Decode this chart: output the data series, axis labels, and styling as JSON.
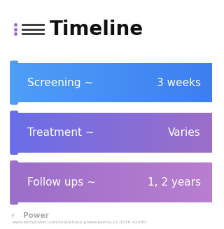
{
  "title": "Timeline",
  "background_color": "#ffffff",
  "rows": [
    {
      "label": "Screening ~",
      "value": "3 weeks",
      "color_left": "#4d9ef7",
      "color_right": "#3d7ef0"
    },
    {
      "label": "Treatment ~",
      "value": "Varies",
      "color_left": "#6a6de8",
      "color_right": "#9b6ec8"
    },
    {
      "label": "Follow ups ~",
      "value": "1, 2 years",
      "color_left": "#9b6ec8",
      "color_right": "#b87ecf"
    }
  ],
  "title_fontsize": 20,
  "row_fontsize": 11,
  "icon_color": "#a066cc",
  "footer_text": "Power",
  "footer_url": "www.withpower.com/trial/phase-preleukemia-11-2016-42d3b",
  "footer_color": "#aaaaaa"
}
